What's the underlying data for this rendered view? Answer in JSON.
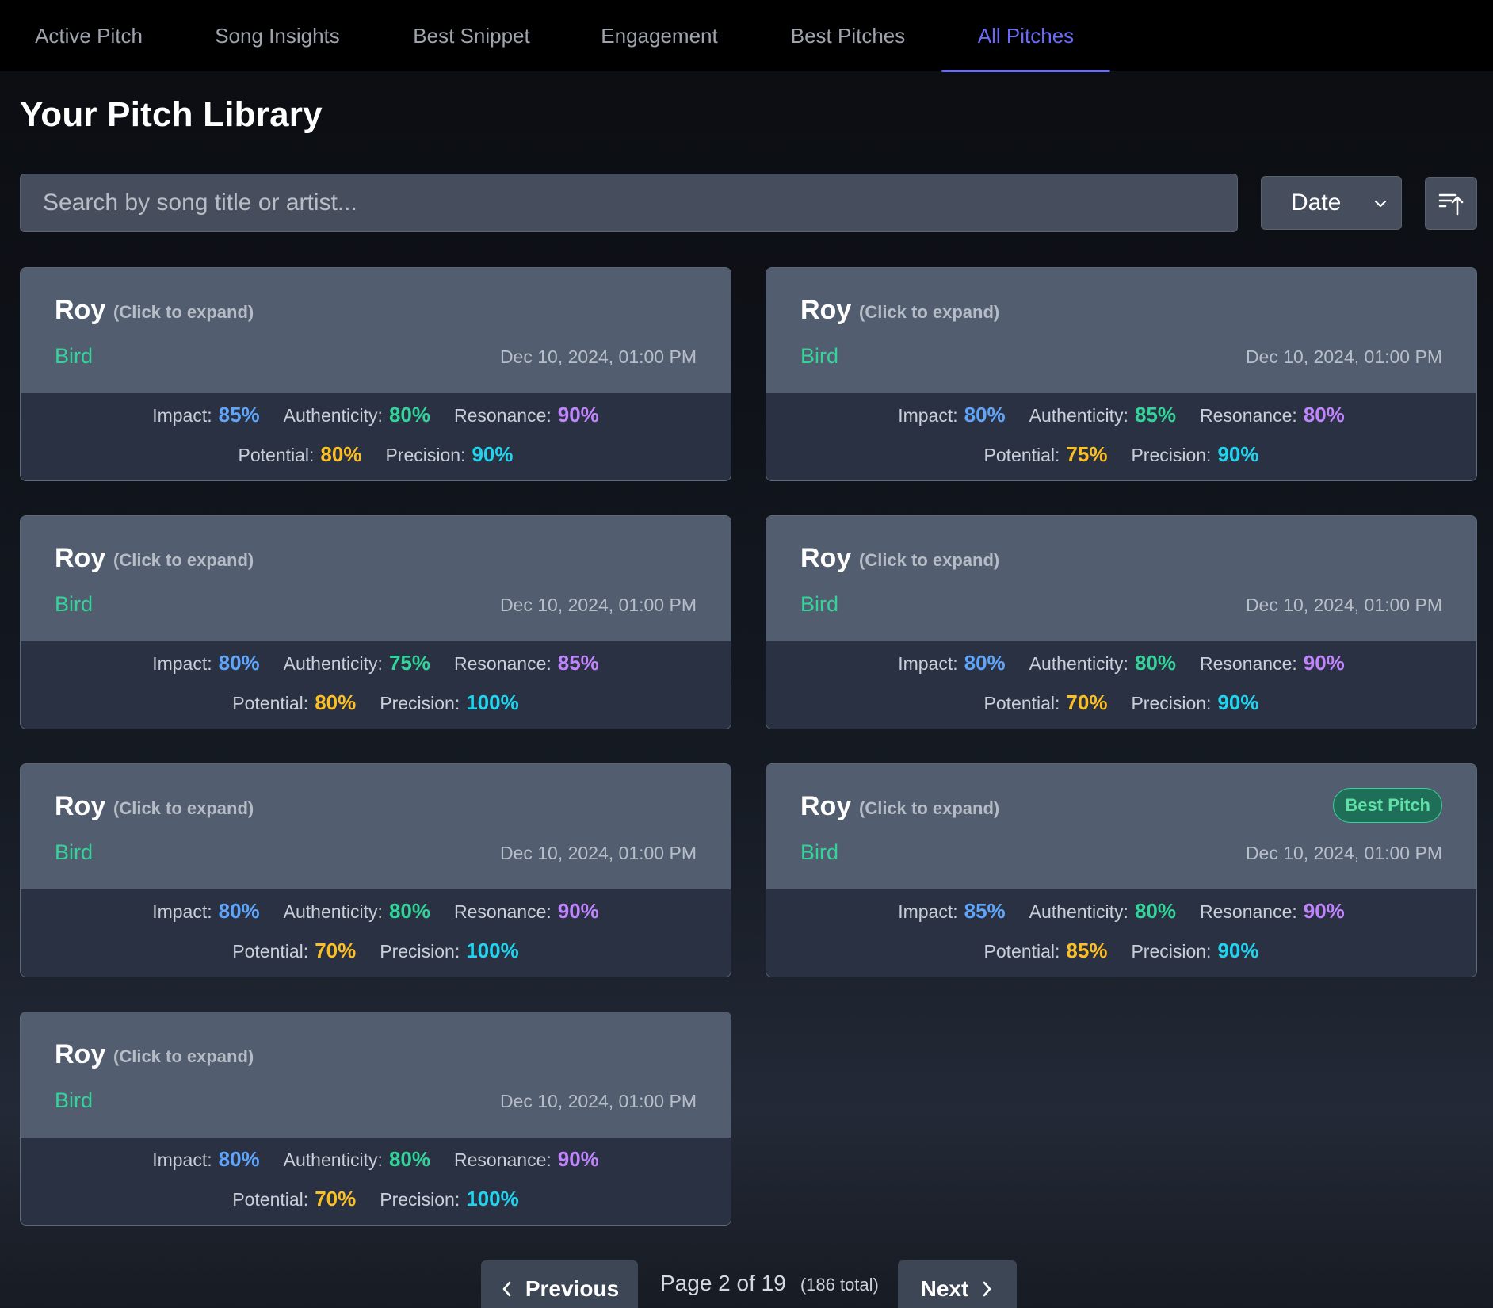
{
  "tabs": [
    {
      "label": "Active Pitch",
      "active": false
    },
    {
      "label": "Song Insights",
      "active": false
    },
    {
      "label": "Best Snippet",
      "active": false
    },
    {
      "label": "Engagement",
      "active": false
    },
    {
      "label": "Best Pitches",
      "active": false
    },
    {
      "label": "All Pitches",
      "active": true
    }
  ],
  "page_title": "Your Pitch Library",
  "search": {
    "placeholder": "Search by song title or artist...",
    "value": ""
  },
  "sort": {
    "selected": "Date",
    "icon": "sort-ascending-icon"
  },
  "metric_labels": {
    "impact": "Impact:",
    "authenticity": "Authenticity:",
    "resonance": "Resonance:",
    "potential": "Potential:",
    "precision": "Precision:"
  },
  "metric_colors": {
    "impact": "#60a5fa",
    "authenticity": "#34d399",
    "resonance": "#c084fc",
    "potential": "#fbbf24",
    "precision": "#22d3ee"
  },
  "cards": [
    {
      "title": "Roy",
      "hint": "(Click to expand)",
      "artist": "Bird",
      "date": "Dec 10, 2024, 01:00 PM",
      "badge": "",
      "impact": "85%",
      "authenticity": "80%",
      "resonance": "90%",
      "potential": "80%",
      "precision": "90%"
    },
    {
      "title": "Roy",
      "hint": "(Click to expand)",
      "artist": "Bird",
      "date": "Dec 10, 2024, 01:00 PM",
      "badge": "",
      "impact": "80%",
      "authenticity": "85%",
      "resonance": "80%",
      "potential": "75%",
      "precision": "90%"
    },
    {
      "title": "Roy",
      "hint": "(Click to expand)",
      "artist": "Bird",
      "date": "Dec 10, 2024, 01:00 PM",
      "badge": "",
      "impact": "80%",
      "authenticity": "75%",
      "resonance": "85%",
      "potential": "80%",
      "precision": "100%"
    },
    {
      "title": "Roy",
      "hint": "(Click to expand)",
      "artist": "Bird",
      "date": "Dec 10, 2024, 01:00 PM",
      "badge": "",
      "impact": "80%",
      "authenticity": "80%",
      "resonance": "90%",
      "potential": "70%",
      "precision": "90%"
    },
    {
      "title": "Roy",
      "hint": "(Click to expand)",
      "artist": "Bird",
      "date": "Dec 10, 2024, 01:00 PM",
      "badge": "",
      "impact": "80%",
      "authenticity": "80%",
      "resonance": "90%",
      "potential": "70%",
      "precision": "100%"
    },
    {
      "title": "Roy",
      "hint": "(Click to expand)",
      "artist": "Bird",
      "date": "Dec 10, 2024, 01:00 PM",
      "badge": "Best Pitch",
      "impact": "85%",
      "authenticity": "80%",
      "resonance": "90%",
      "potential": "85%",
      "precision": "90%"
    },
    {
      "title": "Roy",
      "hint": "(Click to expand)",
      "artist": "Bird",
      "date": "Dec 10, 2024, 01:00 PM",
      "badge": "",
      "impact": "80%",
      "authenticity": "80%",
      "resonance": "90%",
      "potential": "70%",
      "precision": "100%"
    }
  ],
  "pagination": {
    "previous_label": "Previous",
    "next_label": "Next",
    "page_text": "Page 2 of 19",
    "total_text": "(186 total)"
  }
}
